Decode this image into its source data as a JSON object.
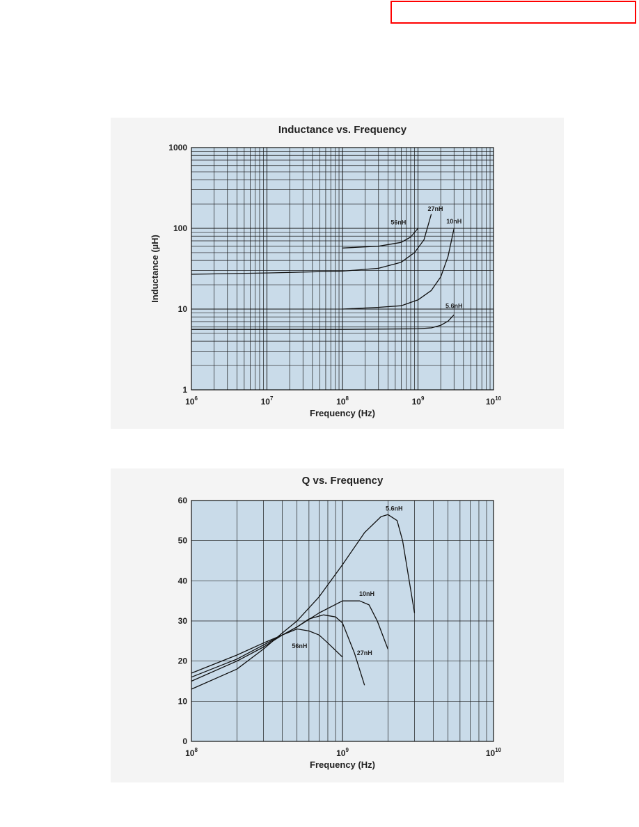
{
  "chart_data": [
    {
      "type": "line",
      "title": "Inductance vs. Frequency",
      "xlabel": "Frequency (Hz)",
      "ylabel": "Inductance (µH)",
      "xscale": "log",
      "yscale": "log",
      "xlim": [
        1000000,
        10000000000
      ],
      "ylim": [
        1,
        1000
      ],
      "grid": true,
      "x_ticks": [
        {
          "base": "10",
          "exp": "6"
        },
        {
          "base": "10",
          "exp": "7"
        },
        {
          "base": "10",
          "exp": "8"
        },
        {
          "base": "10",
          "exp": "9"
        },
        {
          "base": "10",
          "exp": "10"
        }
      ],
      "y_ticks": [
        "1",
        "10",
        "100",
        "1000"
      ],
      "series": [
        {
          "name": "56nH",
          "x": [
            100000000,
            300000000,
            600000000,
            800000000,
            1000000000
          ],
          "values": [
            57,
            60,
            67,
            78,
            100
          ]
        },
        {
          "name": "27nH",
          "x": [
            1000000,
            10000000,
            100000000,
            300000000,
            600000000,
            900000000,
            1200000000,
            1500000000
          ],
          "values": [
            27,
            28,
            29.5,
            32,
            38,
            50,
            72,
            150
          ]
        },
        {
          "name": "10nH",
          "x": [
            100000000,
            300000000,
            600000000,
            1000000000,
            1500000000,
            2000000000,
            2500000000,
            3000000000
          ],
          "values": [
            10,
            10.5,
            11,
            13,
            17,
            25,
            45,
            100
          ]
        },
        {
          "name": "5.6nH",
          "x": [
            1000000,
            10000000,
            100000000,
            1000000000,
            1500000000,
            2000000000,
            2500000000,
            3000000000
          ],
          "values": [
            5.6,
            5.6,
            5.6,
            5.7,
            5.85,
            6.3,
            7.1,
            8.5
          ]
        }
      ]
    },
    {
      "type": "line",
      "title": "Q vs. Frequency",
      "xlabel": "Frequency (Hz)",
      "ylabel": "",
      "xscale": "log",
      "xlim": [
        100000000,
        10000000000
      ],
      "ylim": [
        0,
        60
      ],
      "grid": true,
      "x_ticks": [
        {
          "base": "10",
          "exp": "8"
        },
        {
          "base": "10",
          "exp": "9"
        },
        {
          "base": "10",
          "exp": "10"
        }
      ],
      "y_ticks": [
        "0",
        "10",
        "20",
        "30",
        "40",
        "50",
        "60"
      ],
      "series": [
        {
          "name": "56nH",
          "x": [
            100000000,
            200000000,
            300000000,
            400000000,
            500000000,
            600000000,
            700000000,
            800000000,
            1000000000
          ],
          "values": [
            17,
            21.5,
            24.5,
            26.5,
            28,
            27.5,
            26.5,
            24.5,
            21
          ]
        },
        {
          "name": "27nH",
          "x": [
            100000000,
            200000000,
            300000000,
            400000000,
            500000000,
            600000000,
            750000000,
            900000000,
            1000000000,
            1200000000,
            1400000000
          ],
          "values": [
            16,
            20.5,
            24,
            26.5,
            28.5,
            30.5,
            31.5,
            31,
            29.5,
            22,
            14
          ]
        },
        {
          "name": "10nH",
          "x": [
            100000000,
            200000000,
            300000000,
            400000000,
            500000000,
            700000000,
            1000000000,
            1300000000,
            1500000000,
            1700000000,
            2000000000
          ],
          "values": [
            15,
            20,
            23.5,
            26.5,
            28.5,
            32,
            35,
            35,
            34,
            30,
            23
          ]
        },
        {
          "name": "5.6nH",
          "x": [
            100000000,
            200000000,
            300000000,
            400000000,
            500000000,
            700000000,
            1000000000,
            1400000000,
            1800000000,
            2000000000,
            2300000000,
            2500000000,
            3000000000
          ],
          "values": [
            13,
            18,
            23,
            27,
            30,
            36,
            44,
            52,
            56,
            56.5,
            55,
            50,
            32
          ]
        }
      ]
    }
  ]
}
